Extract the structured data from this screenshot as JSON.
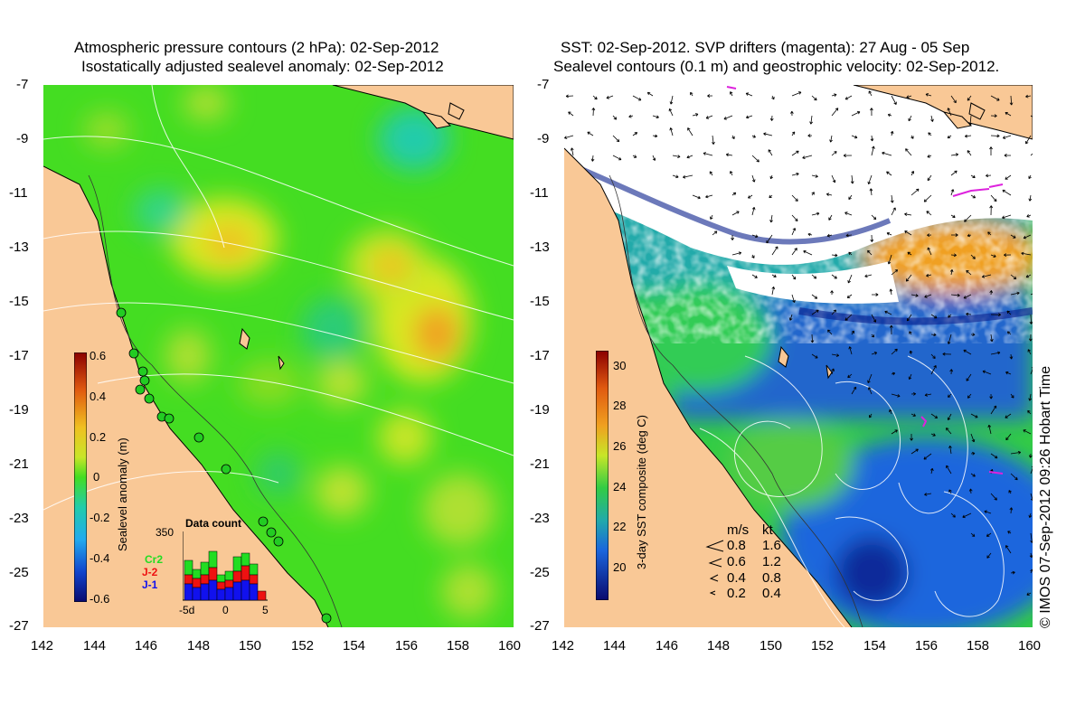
{
  "left_panel": {
    "title_line1": "Atmospheric pressure contours (2 hPa): 02-Sep-2012",
    "title_line2": "Isostatically adjusted sealevel anomaly: 02-Sep-2012",
    "y_ticks": [
      "-7",
      "-9",
      "-11",
      "-13",
      "-15",
      "-17",
      "-19",
      "-21",
      "-23",
      "-25",
      "-27"
    ],
    "x_ticks": [
      "142",
      "144",
      "146",
      "148",
      "150",
      "152",
      "154",
      "156",
      "158",
      "160"
    ],
    "colorbar": {
      "label": "Sealevel anomaly (m)",
      "ticks": [
        "0.6",
        "0.4",
        "0.2",
        "0",
        "-0.2",
        "-0.4",
        "-0.6"
      ]
    },
    "data_count": {
      "title": "Data count",
      "max_label": "350",
      "missions": [
        {
          "name": "Cr2",
          "color": "#22dd22"
        },
        {
          "name": "J-2",
          "color": "#ee1111"
        },
        {
          "name": "J-1",
          "color": "#1111ee"
        }
      ],
      "x_ticks": [
        "-5d",
        "0",
        "5"
      ]
    }
  },
  "right_panel": {
    "title_line1": "SST: 02-Sep-2012. SVP drifters (magenta): 27 Aug - 05 Sep",
    "title_line2": "Sealevel contours (0.1 m) and geostrophic velocity: 02-Sep-2012.",
    "y_ticks": [
      "-7",
      "-9",
      "-11",
      "-13",
      "-15",
      "-17",
      "-19",
      "-21",
      "-23",
      "-25",
      "-27"
    ],
    "x_ticks": [
      "142",
      "144",
      "146",
      "148",
      "150",
      "152",
      "154",
      "156",
      "158",
      "160"
    ],
    "colorbar": {
      "label": "3-day SST composite (deg C)",
      "ticks": [
        "30",
        "28",
        "26",
        "24",
        "22",
        "20"
      ]
    },
    "velocity_legend": {
      "unit1": "m/s",
      "unit2": "kt",
      "rows": [
        {
          "ms": "0.8",
          "kt": "1.6"
        },
        {
          "ms": "0.6",
          "kt": "1.2"
        },
        {
          "ms": "0.4",
          "kt": "0.8"
        },
        {
          "ms": "0.2",
          "kt": "0.4"
        }
      ]
    }
  },
  "footer": "© IMOS 07-Sep-2012 09:26 Hobart Time",
  "colors": {
    "land": "#f9c896",
    "sla_base": "#44dd22",
    "cloud": "#ffffff",
    "sst_warm": "#f0a020",
    "sst_mid": "#22cc44",
    "sst_cool": "#1a66dd",
    "sst_cold": "#0a1f8c",
    "contour": "#ffffff"
  }
}
